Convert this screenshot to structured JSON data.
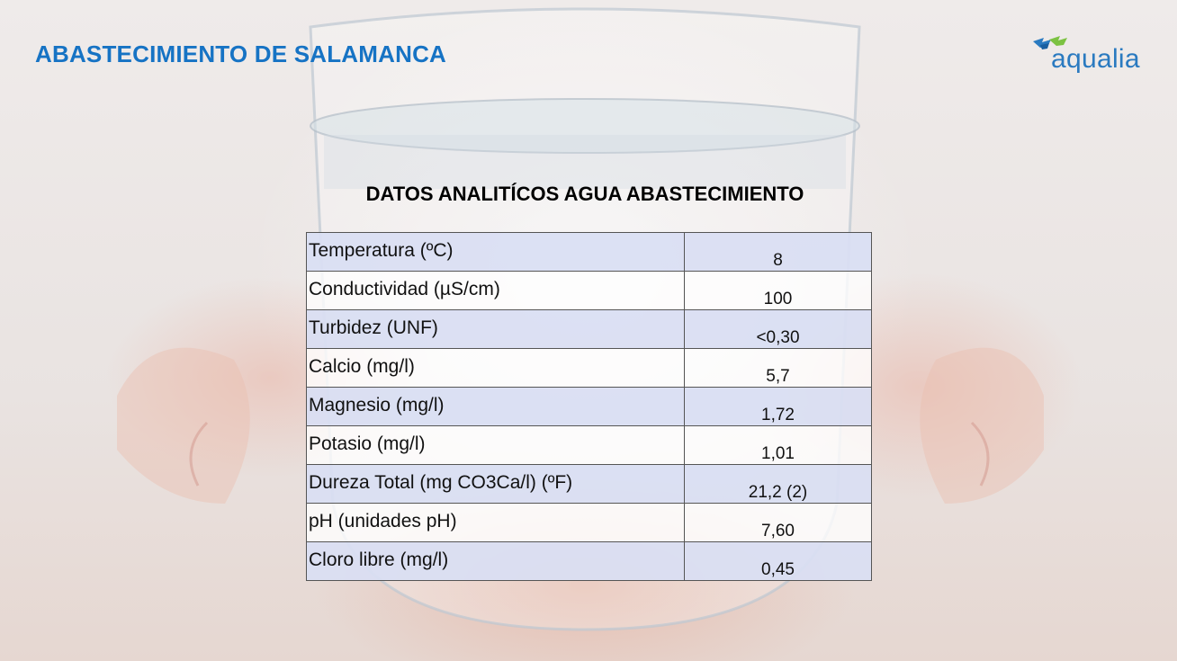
{
  "header": {
    "title": "ABASTECIMIENTO DE SALAMANCA",
    "logo_text": "aqualia",
    "colors": {
      "title": "#1673c4",
      "logo_blue": "#2a7ac0",
      "logo_green": "#7cc242"
    }
  },
  "table": {
    "title": "DATOS ANALITÍCOS AGUA ABASTECIMIENTO",
    "rows": [
      {
        "param": "Temperatura (ºC)",
        "value": "8"
      },
      {
        "param": "Conductividad (µS/cm)",
        "value": "100"
      },
      {
        "param": "Turbidez (UNF)",
        "value": "<0,30"
      },
      {
        "param": "Calcio (mg/l)",
        "value": "5,7"
      },
      {
        "param": "Magnesio (mg/l)",
        "value": "1,72"
      },
      {
        "param": "Potasio (mg/l)",
        "value": "1,01"
      },
      {
        "param": "Dureza Total (mg CO3Ca/l) (ºF)",
        "value": "21,2 (2)"
      },
      {
        "param": "pH (unidades pH)",
        "value": "7,60"
      },
      {
        "param": "Cloro libre (mg/l)",
        "value": "0,45"
      }
    ]
  },
  "background": {
    "icon": "glass-of-water-in-hands-photo"
  }
}
